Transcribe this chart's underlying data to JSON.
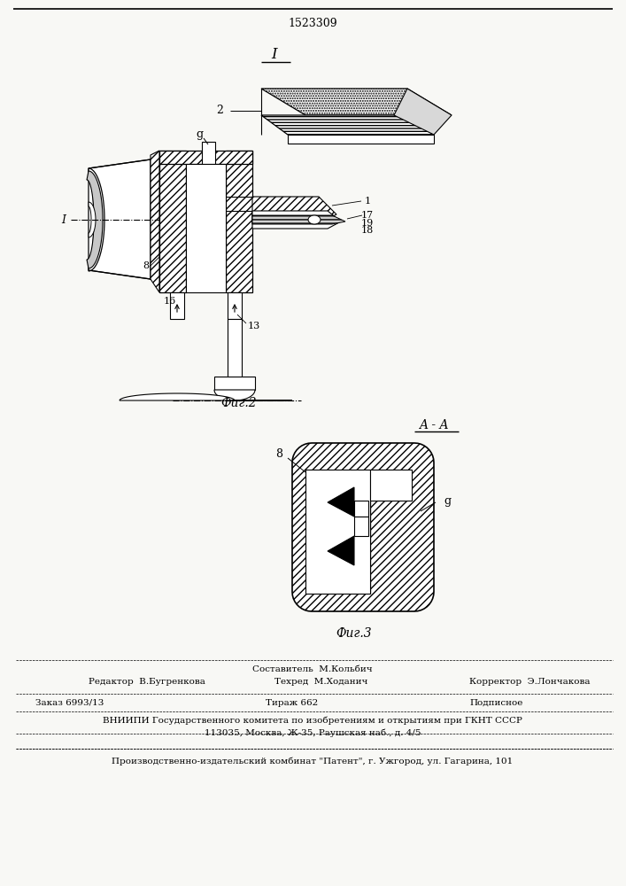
{
  "patent_number": "1523309",
  "background_color": "#f8f8f5",
  "fig2_label": "Фиг.2",
  "fig3_label": "Фиг.3",
  "section_label": "A - A",
  "fig_num_label": "I",
  "footer": {
    "sestavitel": "Составитель  М.Кольбич",
    "redaktor": "Редактор  В.Бугренкова",
    "tehred": "Техред  М.Ходанич",
    "korrektor": "Корректор  Э.Лончакова",
    "zakaz": "Заказ 6993/13",
    "tirazh": "Тираж 662",
    "podpisnoe": "Подписное",
    "vniiipi": "ВНИИПИ Государственного комитета по изобретениям и открытиям при ГКНТ СССР",
    "address": "113035, Москва, Ж-35, Раушская наб., д. 4/5",
    "proizv": "Производственно-издательский комбинат \"Патент\", г. Ужгород, ул. Гагарина, 101"
  }
}
